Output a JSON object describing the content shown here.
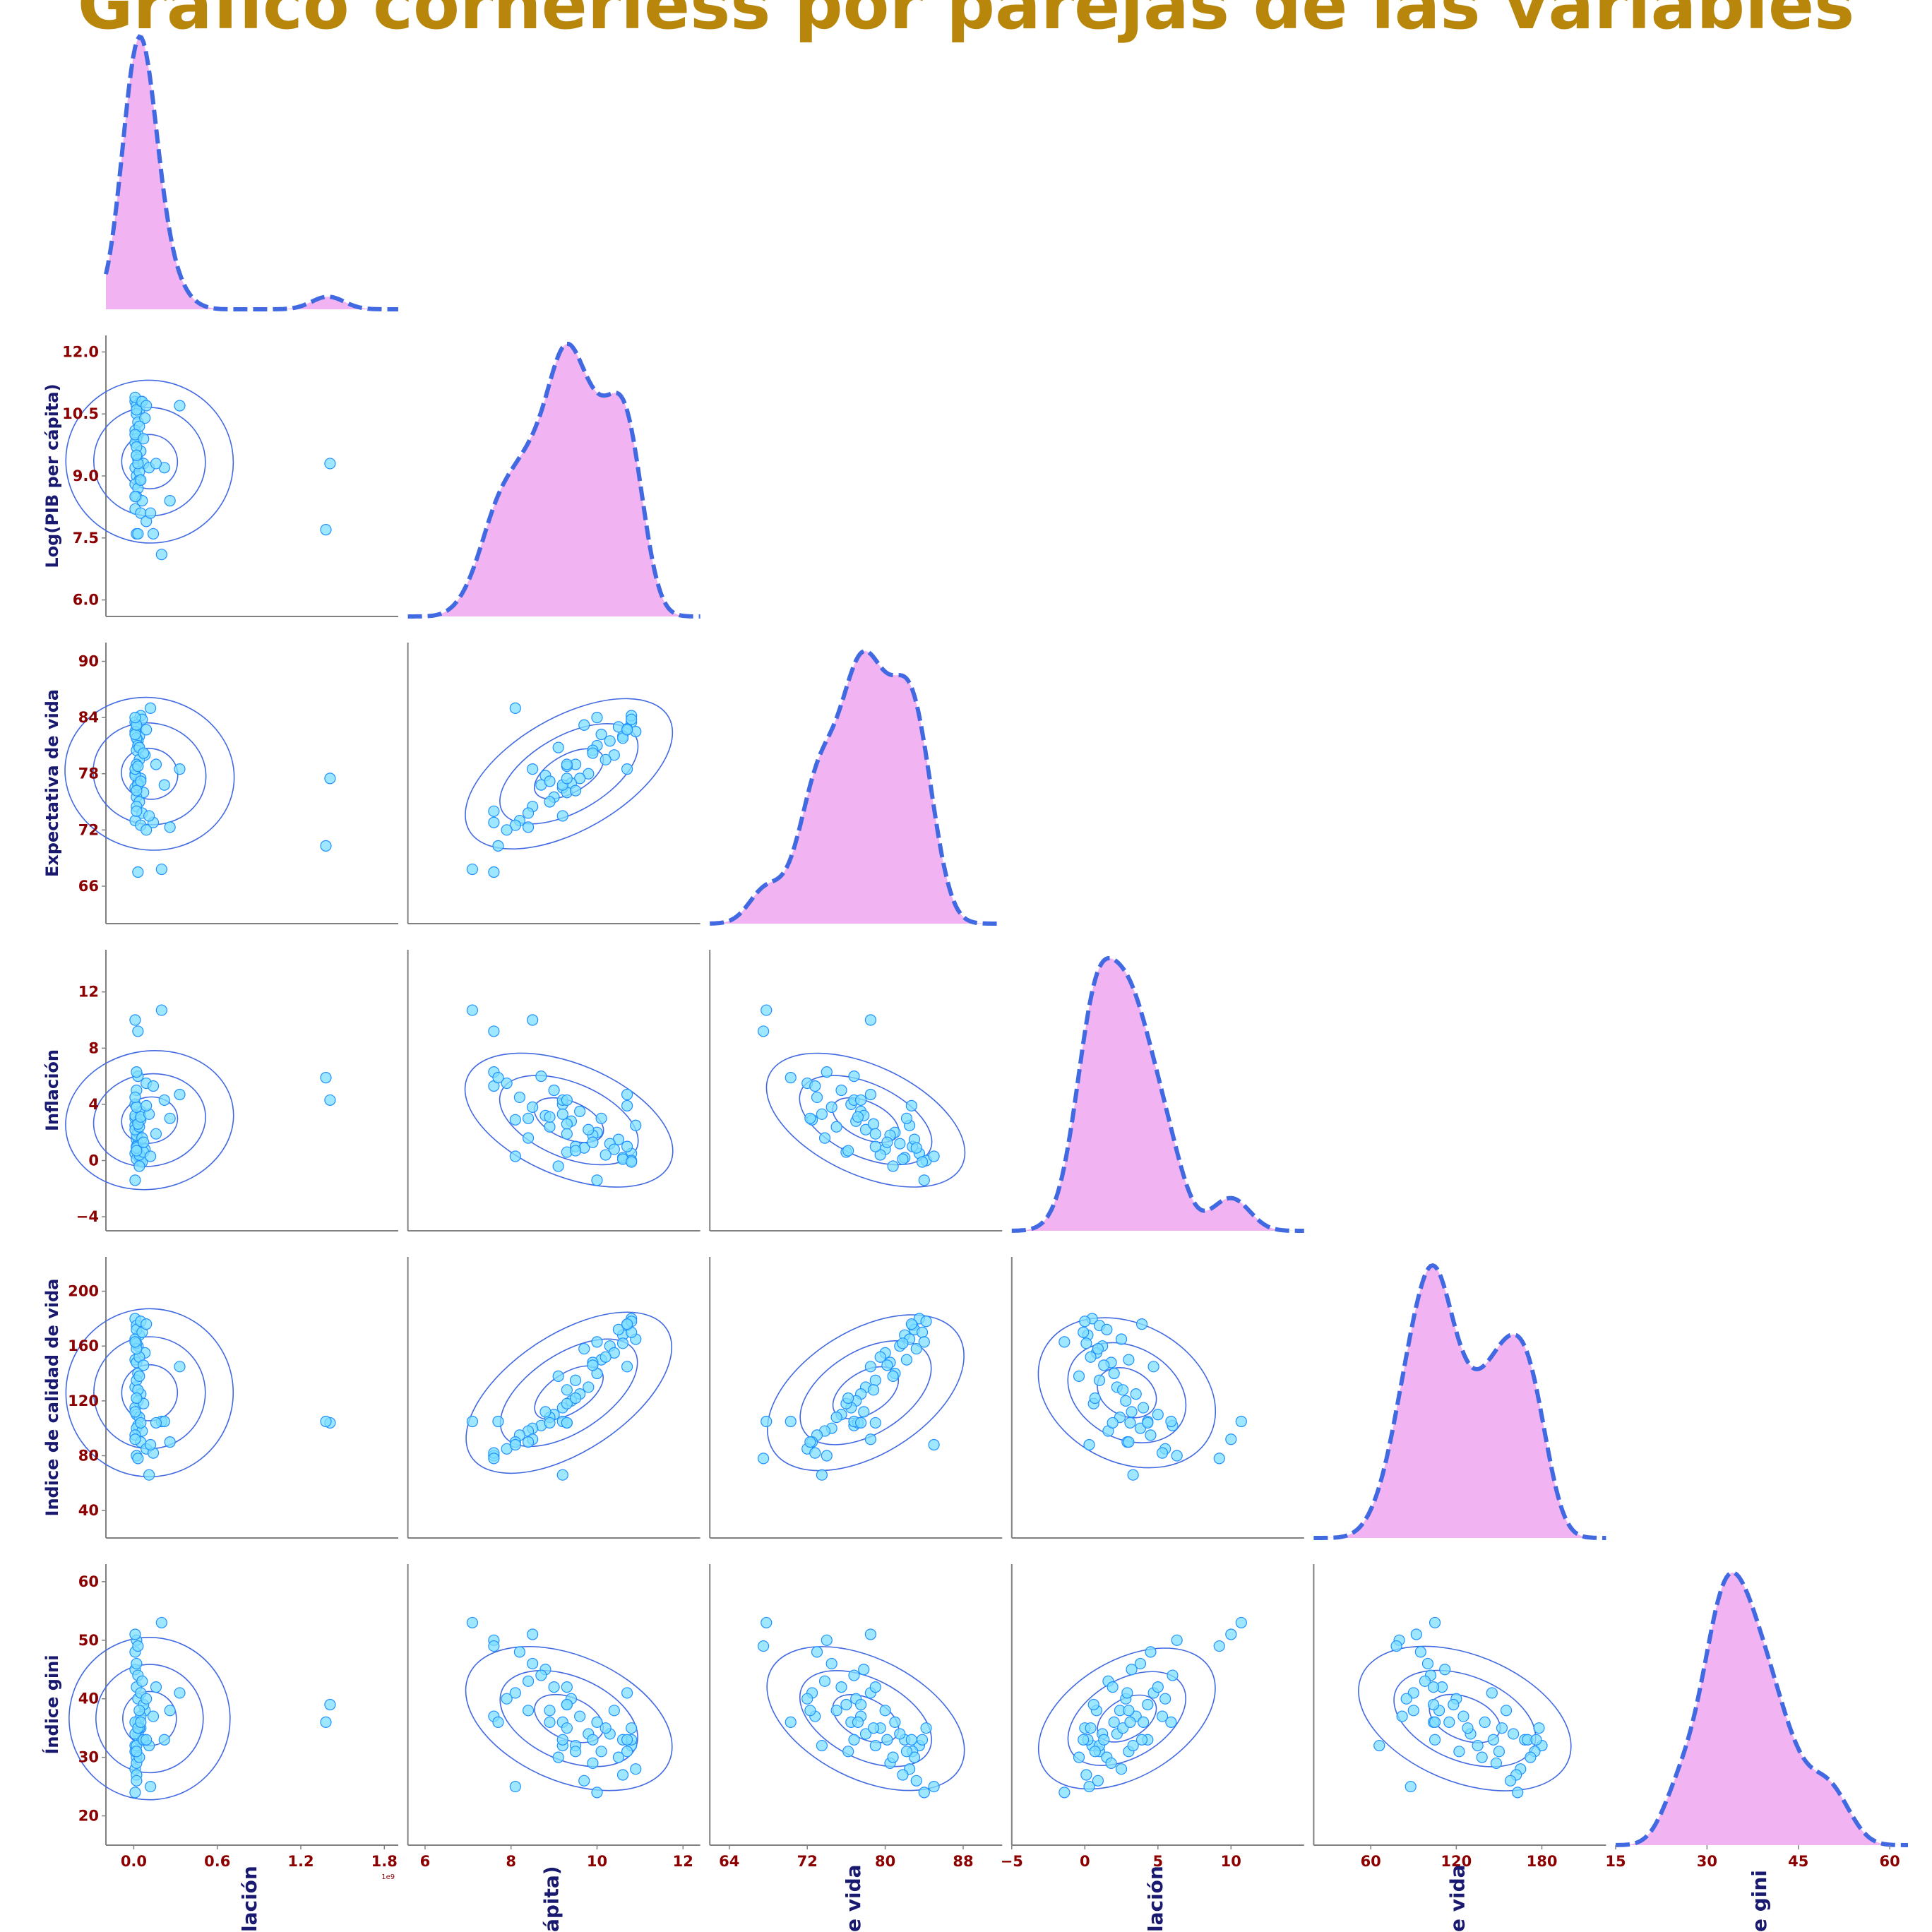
{
  "title": "Gráfico cornerless por parejas de las variables",
  "colors": {
    "title": "#b8860b",
    "tick": "#8b0000",
    "axis_label": "#191970",
    "kde_line": "#4169e1",
    "kde_fill": "#f1b3f1",
    "point_face": "#7fdfff",
    "point_edge": "#1e90ff",
    "contour": "#4169e1",
    "spine": "#808080"
  },
  "offset_label": "1e9",
  "chart_data": {
    "type": "pairplot",
    "variables": [
      {
        "key": "pop",
        "label": "Población",
        "visible_label": "lación",
        "ticks": [
          0.0,
          0.6,
          1.2,
          1.8
        ],
        "tick_labels": [
          "0.0",
          "0.6",
          "1.2",
          "1.8"
        ],
        "lim": [
          -0.2,
          1.9
        ]
      },
      {
        "key": "gdp",
        "label": "Log(PIB per cápita)",
        "visible_label": "ápita)",
        "ticks": [
          6.0,
          7.5,
          9.0,
          10.5,
          12.0
        ],
        "tick_labels": [
          "6.0",
          "7.5",
          "9.0",
          "10.5",
          "12.0"
        ],
        "xticks": [
          6,
          8,
          10,
          12
        ],
        "xtick_labels": [
          "6",
          "8",
          "10",
          "12"
        ],
        "lim": [
          5.6,
          12.4
        ]
      },
      {
        "key": "life",
        "label": "Expectativa de vida",
        "visible_label": "e vida",
        "ticks": [
          66,
          72,
          78,
          84,
          90
        ],
        "tick_labels": [
          "66",
          "72",
          "78",
          "84",
          "90"
        ],
        "xticks": [
          64,
          72,
          80,
          88
        ],
        "xtick_labels": [
          "64",
          "72",
          "80",
          "88"
        ],
        "lim": [
          62,
          92
        ]
      },
      {
        "key": "infl",
        "label": "Inflación",
        "visible_label": "lación",
        "ticks": [
          -4,
          0,
          4,
          8,
          12
        ],
        "tick_labels": [
          "−4",
          "0",
          "4",
          "8",
          "12"
        ],
        "xticks": [
          -5,
          0,
          5,
          10
        ],
        "xtick_labels": [
          "−5",
          "0",
          "5",
          "10"
        ],
        "lim": [
          -5,
          15
        ]
      },
      {
        "key": "qol",
        "label": "Indice de calidad de vida",
        "visible_label": "e vida",
        "ticks": [
          40,
          80,
          120,
          160,
          200
        ],
        "tick_labels": [
          "40",
          "80",
          "120",
          "160",
          "200"
        ],
        "xticks": [
          60,
          120,
          180
        ],
        "xtick_labels": [
          "60",
          "120",
          "180"
        ],
        "lim": [
          20,
          225
        ]
      },
      {
        "key": "gini",
        "label": "Índice gini",
        "visible_label": "e gini",
        "ticks": [
          20,
          30,
          40,
          50,
          60
        ],
        "tick_labels": [
          "20",
          "30",
          "40",
          "50",
          "60"
        ],
        "xticks": [
          15,
          30,
          45,
          60
        ],
        "xtick_labels": [
          "15",
          "30",
          "45",
          "60"
        ],
        "lim": [
          15,
          63
        ]
      }
    ],
    "points": [
      {
        "pop": 0.01,
        "gdp": 10.8,
        "life": 83.5,
        "infl": 0.5,
        "qol": 180,
        "gini": 32
      },
      {
        "pop": 0.02,
        "gdp": 10.7,
        "life": 82.8,
        "infl": 1.0,
        "qol": 175,
        "gini": 31
      },
      {
        "pop": 0.04,
        "gdp": 10.6,
        "life": 82.0,
        "infl": 0.2,
        "qol": 168,
        "gini": 33
      },
      {
        "pop": 0.02,
        "gdp": 10.5,
        "life": 83.0,
        "infl": 1.5,
        "qol": 172,
        "gini": 30
      },
      {
        "pop": 0.05,
        "gdp": 10.8,
        "life": 84.2,
        "infl": 0.0,
        "qol": 178,
        "gini": 35
      },
      {
        "pop": 0.01,
        "gdp": 10.9,
        "life": 82.5,
        "infl": 2.5,
        "qol": 165,
        "gini": 28
      },
      {
        "pop": 0.03,
        "gdp": 10.3,
        "life": 81.5,
        "infl": 1.2,
        "qol": 160,
        "gini": 34
      },
      {
        "pop": 0.08,
        "gdp": 10.4,
        "life": 80.0,
        "infl": 0.8,
        "qol": 155,
        "gini": 38
      },
      {
        "pop": 0.02,
        "gdp": 10.6,
        "life": 81.8,
        "infl": 0.1,
        "qol": 162,
        "gini": 27
      },
      {
        "pop": 0.06,
        "gdp": 10.8,
        "life": 83.8,
        "infl": -0.1,
        "qol": 170,
        "gini": 33
      },
      {
        "pop": 0.01,
        "gdp": 10.1,
        "life": 82.2,
        "infl": 3.0,
        "qol": 150,
        "gini": 31
      },
      {
        "pop": 0.03,
        "gdp": 10.0,
        "life": 81.0,
        "infl": 2.0,
        "qol": 140,
        "gini": 36
      },
      {
        "pop": 0.33,
        "gdp": 10.7,
        "life": 78.5,
        "infl": 4.7,
        "qol": 145,
        "gini": 41
      },
      {
        "pop": 0.02,
        "gdp": 9.9,
        "life": 80.5,
        "infl": 1.8,
        "qol": 148,
        "gini": 29
      },
      {
        "pop": 0.04,
        "gdp": 10.2,
        "life": 79.5,
        "infl": 0.4,
        "qol": 152,
        "gini": 35
      },
      {
        "pop": 0.01,
        "gdp": 9.8,
        "life": 78.0,
        "infl": 2.2,
        "qol": 130,
        "gini": 34
      },
      {
        "pop": 0.05,
        "gdp": 9.6,
        "life": 77.5,
        "infl": 3.5,
        "qol": 125,
        "gini": 37
      },
      {
        "pop": 0.02,
        "gdp": 9.5,
        "life": 79.0,
        "infl": 1.0,
        "qol": 135,
        "gini": 32
      },
      {
        "pop": 0.03,
        "gdp": 9.4,
        "life": 77.0,
        "infl": 2.8,
        "qol": 120,
        "gini": 40
      },
      {
        "pop": 0.01,
        "gdp": 9.2,
        "life": 76.5,
        "infl": 4.0,
        "qol": 115,
        "gini": 36
      },
      {
        "pop": 0.07,
        "gdp": 9.3,
        "life": 76.0,
        "infl": 0.6,
        "qol": 118,
        "gini": 39
      },
      {
        "pop": 0.02,
        "gdp": 9.0,
        "life": 75.5,
        "infl": 5.0,
        "qol": 110,
        "gini": 42
      },
      {
        "pop": 0.04,
        "gdp": 8.9,
        "life": 75.0,
        "infl": 2.4,
        "qol": 108,
        "gini": 38
      },
      {
        "pop": 0.01,
        "gdp": 8.8,
        "life": 77.8,
        "infl": 3.2,
        "qol": 112,
        "gini": 45
      },
      {
        "pop": 0.03,
        "gdp": 8.7,
        "life": 76.8,
        "infl": 6.0,
        "qol": 102,
        "gini": 44
      },
      {
        "pop": 0.02,
        "gdp": 8.5,
        "life": 74.5,
        "infl": 3.8,
        "qol": 100,
        "gini": 46
      },
      {
        "pop": 0.06,
        "gdp": 8.4,
        "life": 73.8,
        "infl": 1.6,
        "qol": 98,
        "gini": 43
      },
      {
        "pop": 0.01,
        "gdp": 8.2,
        "life": 73.0,
        "infl": 4.5,
        "qol": 95,
        "gini": 48
      },
      {
        "pop": 0.05,
        "gdp": 8.1,
        "life": 72.5,
        "infl": 2.9,
        "qol": 90,
        "gini": 41
      },
      {
        "pop": 0.09,
        "gdp": 7.9,
        "life": 72.0,
        "infl": 5.5,
        "qol": 85,
        "gini": 40
      },
      {
        "pop": 0.02,
        "gdp": 7.6,
        "life": 74.0,
        "infl": 6.3,
        "qol": 80,
        "gini": 50
      },
      {
        "pop": 0.14,
        "gdp": 7.6,
        "life": 72.8,
        "infl": 5.3,
        "qol": 82,
        "gini": 37
      },
      {
        "pop": 0.2,
        "gdp": 7.1,
        "life": 67.8,
        "infl": 10.7,
        "qol": 105,
        "gini": 53
      },
      {
        "pop": 0.03,
        "gdp": 7.6,
        "life": 67.5,
        "infl": 9.2,
        "qol": 78,
        "gini": 49
      },
      {
        "pop": 0.01,
        "gdp": 8.5,
        "life": 78.5,
        "infl": 10.0,
        "qol": 92,
        "gini": 51
      },
      {
        "pop": 0.12,
        "gdp": 8.1,
        "life": 85.0,
        "infl": 0.3,
        "qol": 88,
        "gini": 25
      },
      {
        "pop": 0.04,
        "gdp": 9.1,
        "life": 80.8,
        "infl": -0.4,
        "qol": 138,
        "gini": 30
      },
      {
        "pop": 0.02,
        "gdp": 9.7,
        "life": 83.2,
        "infl": 0.9,
        "qol": 158,
        "gini": 26
      },
      {
        "pop": 0.01,
        "gdp": 10.0,
        "life": 84.0,
        "infl": -1.4,
        "qol": 163,
        "gini": 24
      },
      {
        "pop": 0.07,
        "gdp": 9.9,
        "life": 80.2,
        "infl": 1.3,
        "qol": 146,
        "gini": 33
      },
      {
        "pop": 0.03,
        "gdp": 9.3,
        "life": 78.8,
        "infl": 2.6,
        "qol": 128,
        "gini": 35
      },
      {
        "pop": 0.05,
        "gdp": 8.9,
        "life": 77.2,
        "infl": 3.1,
        "qol": 104,
        "gini": 36
      },
      {
        "pop": 0.02,
        "gdp": 9.5,
        "life": 76.2,
        "infl": 0.7,
        "qol": 122,
        "gini": 31
      },
      {
        "pop": 0.11,
        "gdp": 9.2,
        "life": 73.5,
        "infl": 3.3,
        "qol": 66,
        "gini": 32
      },
      {
        "pop": 0.26,
        "gdp": 8.4,
        "life": 72.3,
        "infl": 3.0,
        "qol": 90,
        "gini": 38
      },
      {
        "pop": 0.22,
        "gdp": 9.2,
        "life": 76.8,
        "infl": 4.3,
        "qol": 105,
        "gini": 33
      },
      {
        "pop": 0.16,
        "gdp": 9.3,
        "life": 79.0,
        "infl": 1.9,
        "qol": 104,
        "gini": 42
      },
      {
        "pop": 0.09,
        "gdp": 10.7,
        "life": 82.7,
        "infl": 3.9,
        "qol": 176,
        "gini": 33
      },
      {
        "pop": 1.41,
        "gdp": 9.3,
        "life": 77.5,
        "infl": 4.3,
        "qol": 104,
        "gini": 39
      },
      {
        "pop": 1.38,
        "gdp": 7.7,
        "life": 70.3,
        "infl": 5.9,
        "qol": 105,
        "gini": 36
      }
    ]
  }
}
